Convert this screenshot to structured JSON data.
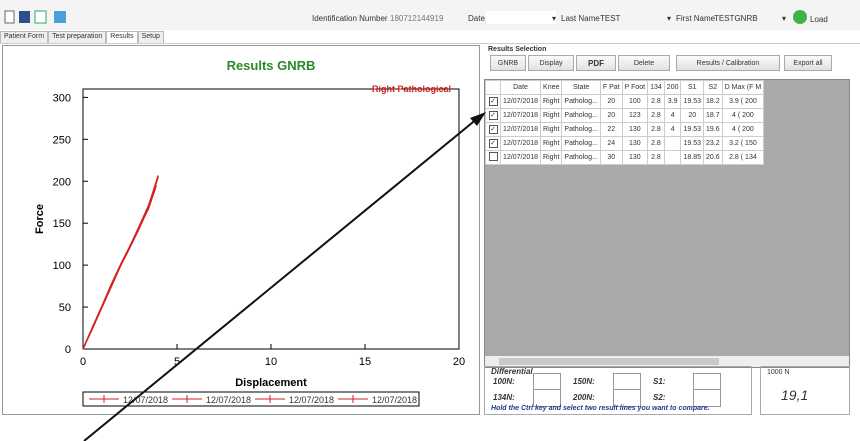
{
  "toolbar": {
    "id_label": "Identification Number",
    "id_value": "180712144919",
    "date_label": "Date",
    "last_name_label": "Last Name",
    "last_name": "TEST",
    "first_name_label": "First Name",
    "first_name": "TESTGNRB",
    "load": "Load"
  },
  "tabs": [
    "Patient Form",
    "Test preparation",
    "Results",
    "Setup"
  ],
  "chart": {
    "type": "line",
    "title": "Results GNRB",
    "annotation": "Right Pathological",
    "x_label": "Displacement",
    "y_label": "Force",
    "xlim": [
      0,
      20
    ],
    "ylim": [
      0,
      310
    ],
    "xticks": [
      0,
      5,
      10,
      15,
      20
    ],
    "yticks": [
      0,
      50,
      100,
      150,
      200,
      250,
      300
    ],
    "series": [
      {
        "name": "12/07/2018",
        "color": "#d42020",
        "x": [
          0,
          0.5,
          1,
          1.5,
          2,
          2.5,
          3,
          3.5,
          3.9
        ],
        "values": [
          0,
          25,
          50,
          76,
          100,
          122,
          145,
          168,
          195
        ]
      },
      {
        "name": "12/07/2018",
        "color": "#d42020",
        "x": [
          0,
          0.5,
          1,
          1.5,
          2,
          2.5,
          3,
          3.5,
          4
        ],
        "values": [
          0,
          24,
          49,
          74,
          99,
          121,
          144,
          170,
          205
        ]
      },
      {
        "name": "12/07/2018",
        "color": "#d42020",
        "x": [
          0,
          0.5,
          1,
          1.5,
          2,
          2.5,
          3,
          3.5,
          4
        ],
        "values": [
          0,
          26,
          51,
          77,
          101,
          123,
          147,
          172,
          207
        ]
      },
      {
        "name": "12/07/2018",
        "color": "#d42020",
        "x": [
          0,
          0.5,
          1,
          1.5,
          2,
          2.5,
          3,
          3.5,
          3.8
        ],
        "values": [
          0,
          25,
          50,
          75,
          100,
          122,
          146,
          171,
          188
        ]
      }
    ]
  },
  "results": {
    "title": "Results Selection",
    "buttons": [
      "GNRB",
      "Display",
      "PDF",
      "Delete",
      "Results / Calibration",
      "Export all"
    ],
    "columns": [
      "Date",
      "Knee",
      "State",
      "F Pat",
      "P Foot",
      "134",
      "200",
      "S1",
      "S2",
      "D Max (F M"
    ],
    "rows": [
      {
        "checked": true,
        "cells": [
          "12/07/2018",
          "Right",
          "Patholog...",
          "20",
          "100",
          "2.8",
          "3.9",
          "19.53",
          "18.2",
          "3.9 ( 200"
        ]
      },
      {
        "checked": true,
        "cells": [
          "12/07/2018",
          "Right",
          "Patholog...",
          "20",
          "123",
          "2.8",
          "4",
          "20",
          "18.7",
          "4 ( 200"
        ]
      },
      {
        "checked": true,
        "cells": [
          "12/07/2018",
          "Right",
          "Patholog...",
          "22",
          "130",
          "2.8",
          "4",
          "19.53",
          "19.6",
          "4 ( 200"
        ]
      },
      {
        "checked": true,
        "cells": [
          "12/07/2018",
          "Right",
          "Patholog...",
          "24",
          "130",
          "2.8",
          null,
          "19.53",
          "23.2",
          "3.2 ( 150"
        ]
      },
      {
        "checked": false,
        "cells": [
          "12/07/2018",
          "Right",
          "Patholog...",
          "30",
          "130",
          "2.8",
          null,
          "18.85",
          "20.6",
          "2.8 ( 134"
        ]
      }
    ]
  },
  "differential": {
    "title": "Differential",
    "fields": [
      "100N:",
      "150N:",
      "S1:",
      "134N:",
      "200N:",
      "S2:"
    ],
    "hint": "Hold the Ctrl key and select two result lines you want to compare.",
    "force_label": "1000 N",
    "force_value": "19,1"
  }
}
